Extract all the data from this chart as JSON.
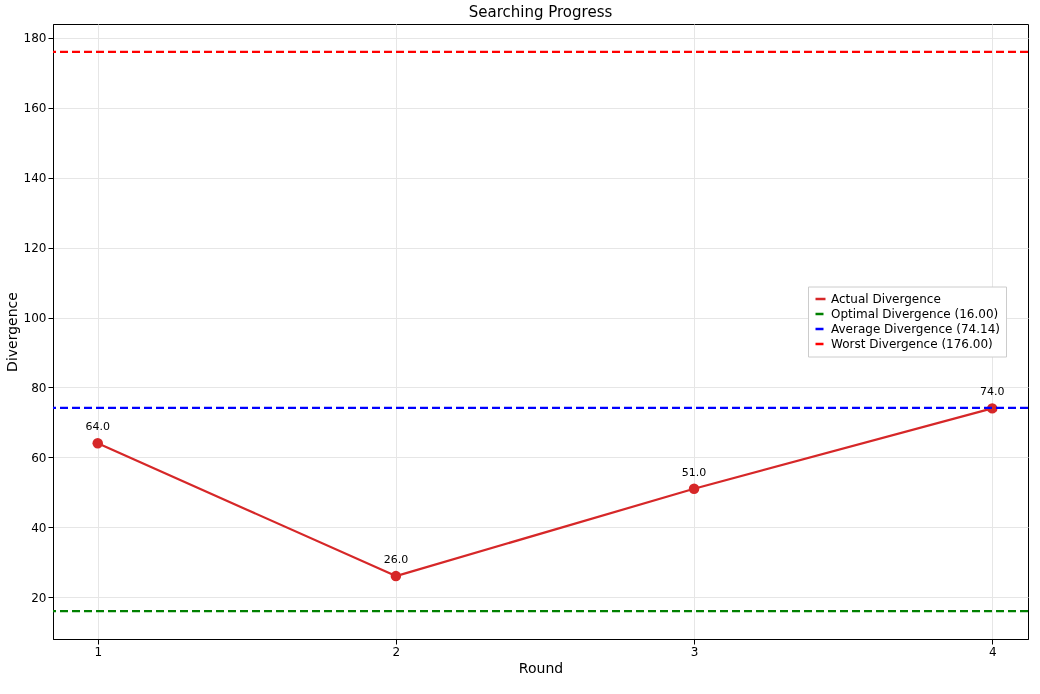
{
  "chart_data": {
    "type": "line",
    "title": "Searching Progress",
    "xlabel": "Round",
    "ylabel": "Divergence",
    "x": [
      1,
      2,
      3,
      4
    ],
    "series": [
      {
        "name": "Actual Divergence",
        "color": "#d62728",
        "values": [
          64,
          26,
          51,
          74
        ],
        "value_labels": [
          "64.0",
          "26.0",
          "51.0",
          "74.0"
        ]
      }
    ],
    "ref_lines": [
      {
        "axis": "y",
        "value": 16,
        "label": "Optimal Divergence (16.00)",
        "color": "#008000",
        "line_style": "dashed"
      },
      {
        "axis": "y",
        "value": 74.14,
        "label": "Average Divergence (74.14)",
        "color": "#0000ff",
        "line_style": "dashed"
      },
      {
        "axis": "y",
        "value": 176,
        "label": "Worst Divergence (176.00)",
        "color": "#ff0000",
        "line_style": "dashed"
      }
    ],
    "xlim": [
      0.85,
      4.12
    ],
    "xticks": [
      1,
      2,
      3,
      4
    ],
    "ylim": [
      8,
      184
    ],
    "yticks": [
      20,
      40,
      60,
      80,
      100,
      120,
      140,
      160,
      180
    ],
    "grid": true,
    "legend": "center right",
    "marker": "circle",
    "line_style": "solid"
  }
}
